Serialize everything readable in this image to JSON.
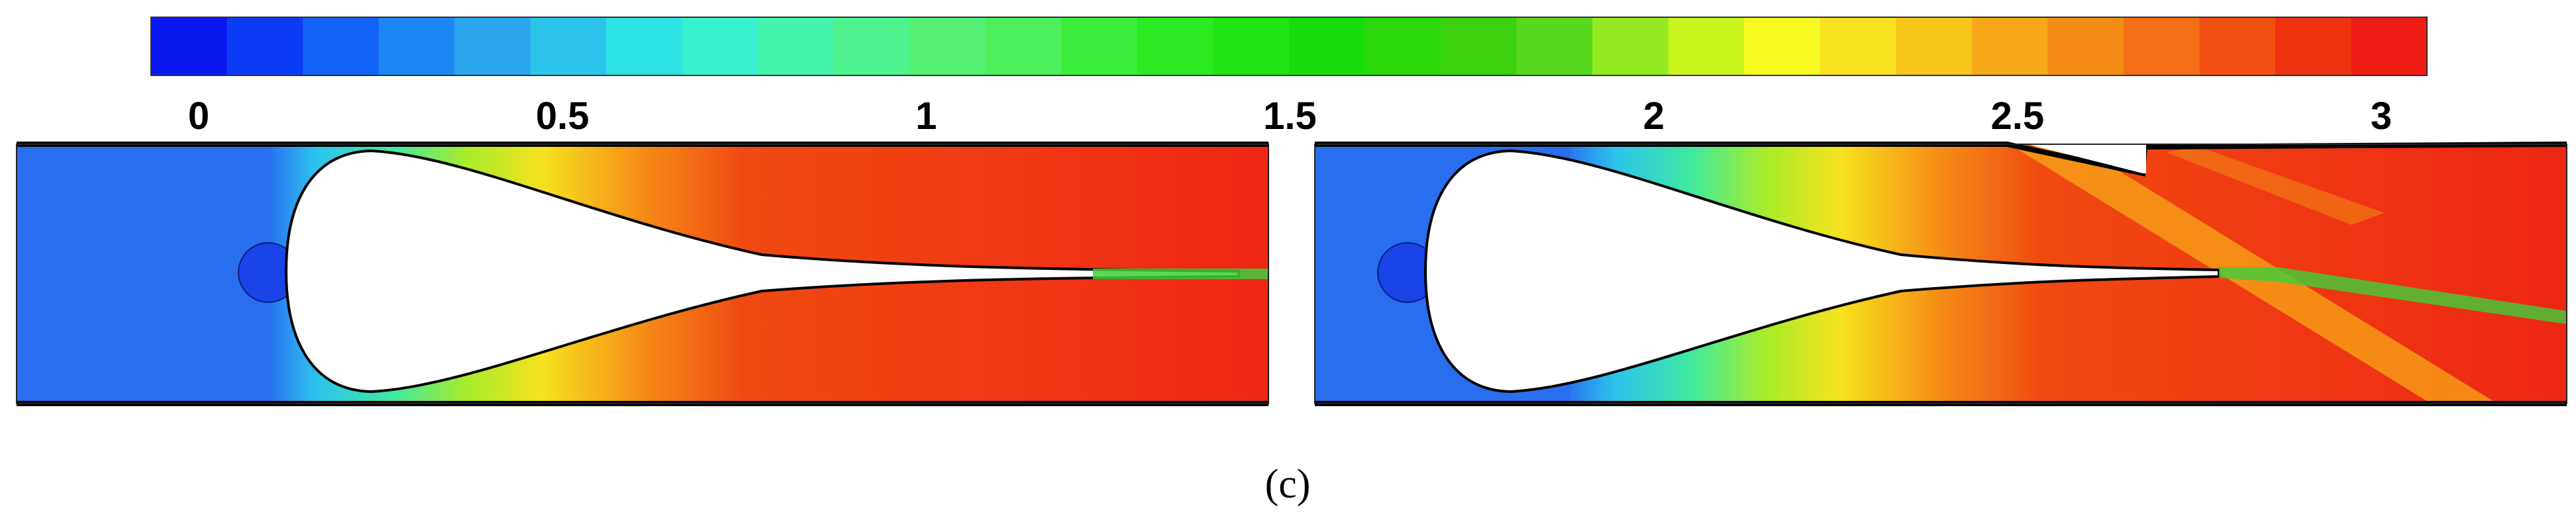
{
  "colorbar": {
    "tick_labels": [
      {
        "value": 0,
        "label": "0"
      },
      {
        "value": 0.5,
        "label": "0.5"
      },
      {
        "value": 1,
        "label": "1"
      },
      {
        "value": 1.5,
        "label": "1.5"
      },
      {
        "value": 2,
        "label": "2"
      },
      {
        "value": 2.5,
        "label": "2.5"
      },
      {
        "value": 3,
        "label": "3"
      }
    ],
    "range": [
      0,
      3
    ],
    "levels": 30,
    "colors": [
      "#0a16ef",
      "#0c3cf5",
      "#1262f7",
      "#1f86f5",
      "#2aa6ee",
      "#2dc4ec",
      "#2ee3e6",
      "#38f2cf",
      "#45f4ad",
      "#4ef38e",
      "#55f175",
      "#4df05c",
      "#3bee3b",
      "#2cea22",
      "#20e312",
      "#18dc0a",
      "#2ad80a",
      "#3bd10d",
      "#58d81c",
      "#93ea21",
      "#c9f41d",
      "#f6f91f",
      "#f9e220",
      "#f8c51b",
      "#f7a818",
      "#f58c16",
      "#f36e14",
      "#f15012",
      "#ef3210",
      "#ee1c14"
    ]
  },
  "panels": [
    {
      "id": "left",
      "variant": "no-ramp"
    },
    {
      "id": "right",
      "variant": "with-ramp"
    }
  ],
  "caption": "(c)"
}
